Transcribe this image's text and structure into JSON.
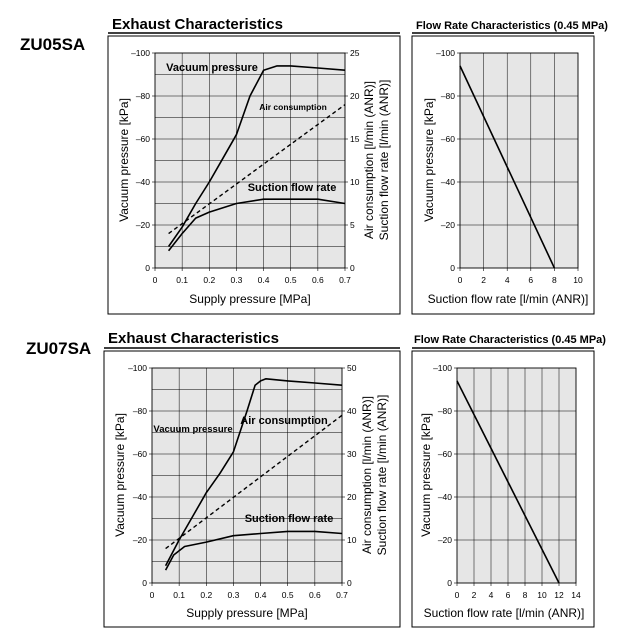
{
  "sections": [
    {
      "model": "ZU05SA",
      "exhaust_title": "Exhaust Characteristics",
      "flow_title": "Flow Rate Characteristics (0.45 MPa)"
    },
    {
      "model": "ZU07SA",
      "exhaust_title": "Exhaust Characteristics",
      "flow_title": "Flow Rate Characteristics (0.45 MPa)"
    }
  ],
  "chart_data": [
    {
      "type": "line",
      "title": "Exhaust Characteristics",
      "model": "ZU05SA",
      "xlabel": "Supply pressure [MPa]",
      "ylabel": "Vacuum pressure [kPa]",
      "y2label_1": "Air consumption [l/min (ANR)]",
      "y2label_2": "Suction flow rate [l/min (ANR)]",
      "xlim": [
        0,
        0.7
      ],
      "ylim": [
        0,
        -100
      ],
      "y2lim": [
        0,
        25
      ],
      "x_ticks": [
        "0",
        "0.1",
        "0.2",
        "0.3",
        "0.4",
        "0.5",
        "0.6",
        "0.7"
      ],
      "y_ticks": [
        "0",
        "–20",
        "–40",
        "–60",
        "–80",
        "–100"
      ],
      "y2_ticks": [
        "0",
        "5",
        "10",
        "15",
        "20",
        "25"
      ],
      "grid": true,
      "series": [
        {
          "name": "Vacuum pressure",
          "axis": "left",
          "style": "solid",
          "x": [
            0.05,
            0.1,
            0.15,
            0.2,
            0.25,
            0.3,
            0.35,
            0.4,
            0.45,
            0.5,
            0.6,
            0.7
          ],
          "y": [
            -10,
            -19,
            -30,
            -40,
            -51,
            -62,
            -80,
            -92,
            -94,
            -94,
            -93,
            -92
          ]
        },
        {
          "name": "Air consumption",
          "axis": "right",
          "style": "dashed",
          "x": [
            0.05,
            0.7
          ],
          "y": [
            4,
            19
          ]
        },
        {
          "name": "Suction flow rate",
          "axis": "right",
          "style": "solid",
          "x": [
            0.05,
            0.1,
            0.15,
            0.2,
            0.3,
            0.4,
            0.5,
            0.6,
            0.7
          ],
          "y": [
            2,
            4,
            5.8,
            6.5,
            7.5,
            8,
            8,
            8,
            7.5
          ]
        }
      ]
    },
    {
      "type": "line",
      "title": "Flow Rate Characteristics (0.45 MPa)",
      "model": "ZU05SA",
      "xlabel": "Suction flow rate [l/min (ANR)]",
      "ylabel": "Vacuum pressure [kPa]",
      "xlim": [
        0,
        10
      ],
      "ylim": [
        0,
        -100
      ],
      "x_ticks": [
        "0",
        "2",
        "4",
        "6",
        "8",
        "10"
      ],
      "y_ticks": [
        "0",
        "–20",
        "–40",
        "–60",
        "–80",
        "–100"
      ],
      "grid": true,
      "series": [
        {
          "style": "solid",
          "x": [
            0,
            8
          ],
          "y": [
            -94,
            0
          ]
        }
      ]
    },
    {
      "type": "line",
      "title": "Exhaust Characteristics",
      "model": "ZU07SA",
      "xlabel": "Supply pressure [MPa]",
      "ylabel": "Vacuum pressure [kPa]",
      "y2label_1": "Air consumption [l/min (ANR)]",
      "y2label_2": "Suction flow rate [l/min (ANR)]",
      "xlim": [
        0,
        0.7
      ],
      "ylim": [
        0,
        -100
      ],
      "y2lim": [
        0,
        50
      ],
      "x_ticks": [
        "0",
        "0.1",
        "0.2",
        "0.3",
        "0.4",
        "0.5",
        "0.6",
        "0.7"
      ],
      "y_ticks": [
        "0",
        "–20",
        "–40",
        "–60",
        "–80",
        "–100"
      ],
      "y2_ticks": [
        "0",
        "10",
        "20",
        "30",
        "40",
        "50"
      ],
      "grid": true,
      "series": [
        {
          "name": "Vacuum pressure",
          "axis": "left",
          "style": "solid",
          "x": [
            0.05,
            0.1,
            0.15,
            0.2,
            0.25,
            0.3,
            0.35,
            0.38,
            0.4,
            0.42,
            0.5,
            0.6,
            0.7
          ],
          "y": [
            -8,
            -20,
            -31,
            -42,
            -51,
            -61,
            -80,
            -92,
            -94,
            -95,
            -94,
            -93,
            -92
          ]
        },
        {
          "name": "Air consumption",
          "axis": "right",
          "style": "dashed",
          "x": [
            0.05,
            0.7
          ],
          "y": [
            8,
            39
          ]
        },
        {
          "name": "Suction flow rate",
          "axis": "right",
          "style": "solid",
          "x": [
            0.05,
            0.08,
            0.12,
            0.2,
            0.3,
            0.4,
            0.5,
            0.6,
            0.7
          ],
          "y": [
            3,
            6.5,
            8.5,
            9.5,
            11,
            11.5,
            12,
            12,
            11.5
          ]
        }
      ]
    },
    {
      "type": "line",
      "title": "Flow Rate Characteristics (0.45 MPa)",
      "model": "ZU07SA",
      "xlabel": "Suction flow rate [l/min (ANR)]",
      "ylabel": "Vacuum pressure [kPa]",
      "xlim": [
        0,
        14
      ],
      "ylim": [
        0,
        -100
      ],
      "x_ticks": [
        "0",
        "2",
        "4",
        "6",
        "8",
        "10",
        "12",
        "14"
      ],
      "y_ticks": [
        "0",
        "–20",
        "–40",
        "–60",
        "–80",
        "–100"
      ],
      "grid": true,
      "series": [
        {
          "style": "solid",
          "x": [
            0,
            12
          ],
          "y": [
            -94,
            0
          ]
        }
      ]
    }
  ]
}
